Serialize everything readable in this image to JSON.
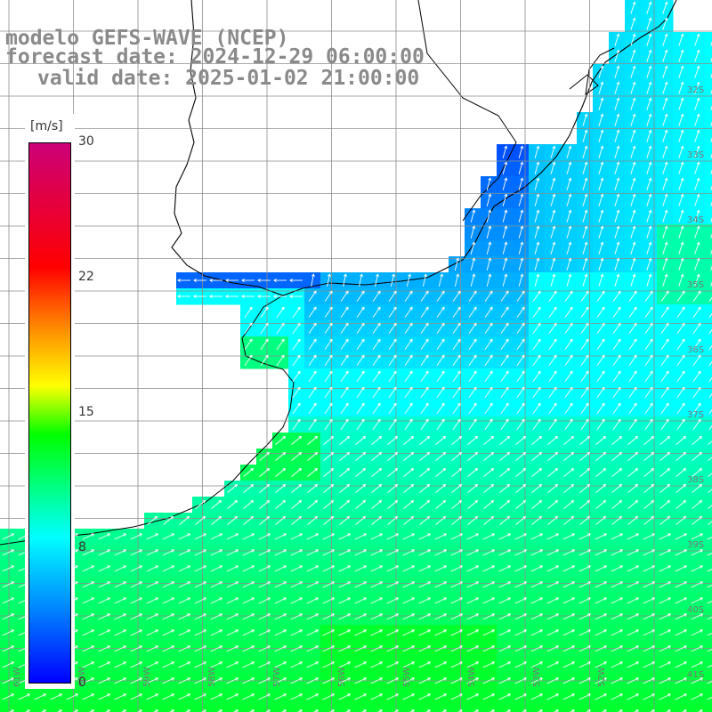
{
  "title": {
    "line1": "modelo GEFS-WAVE (NCEP)",
    "line2": "forecast date: 2024-12-29 06:00:00",
    "line3": "valid date: 2025-01-02 21:00:00"
  },
  "colorbar": {
    "unit": "[m/s]",
    "ticks": [
      "30",
      "22",
      "15",
      "8",
      "0"
    ],
    "tick_values": [
      30,
      22,
      15,
      8,
      0
    ],
    "stops": [
      "#0000ff",
      "#0088ff",
      "#00ffff",
      "#00ff00",
      "#ffff00",
      "#ff8800",
      "#ff0000",
      "#cc0077"
    ]
  },
  "lat_labels": [
    "32S",
    "33S",
    "34S",
    "35S",
    "36S",
    "37S",
    "38S",
    "39S",
    "40S",
    "41S"
  ],
  "lon_labels": [
    "61W",
    "60W",
    "59W",
    "58W",
    "57W",
    "56W",
    "55W",
    "54W",
    "53W",
    "52W"
  ],
  "colors": {
    "land": "#ffffff",
    "coast": "#000000",
    "grid": "#8c8c8c",
    "arrow": "#ffffff",
    "title": "#8a8a8a"
  }
}
